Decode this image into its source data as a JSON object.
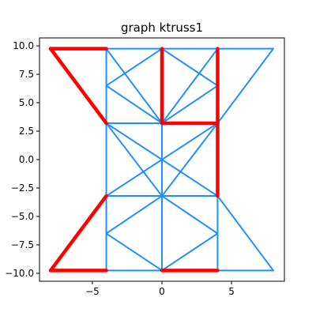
{
  "chart_data": {
    "type": "line",
    "title": "graph ktruss1",
    "xlabel": "",
    "ylabel": "",
    "xlim": [
      -8.8,
      8.8
    ],
    "ylim": [
      -10.7,
      10.7
    ],
    "x_ticks": [
      -5,
      0,
      5
    ],
    "y_ticks": [
      10.0,
      7.5,
      5.0,
      2.5,
      0.0,
      -2.5,
      -5.0,
      -7.5,
      -10.0
    ],
    "x_tick_labels": [
      "−5",
      "0",
      "5"
    ],
    "y_tick_labels": [
      "10.0",
      "7.5",
      "5.0",
      "2.5",
      "0.0",
      "−2.5",
      "−5.0",
      "−7.5",
      "−10.0"
    ],
    "grid": false,
    "legend": "none",
    "colors": {
      "edge": "#1e90ff",
      "highlight": "#ff0000"
    },
    "nodes": [
      [
        -8,
        9.75
      ],
      [
        -4,
        9.75
      ],
      [
        0,
        9.75
      ],
      [
        4,
        9.75
      ],
      [
        8,
        9.75
      ],
      [
        -4,
        6.5
      ],
      [
        4,
        6.5
      ],
      [
        -4,
        3.2
      ],
      [
        0,
        3.2
      ],
      [
        4,
        3.2
      ],
      [
        0,
        -3.2
      ],
      [
        -4,
        -3.2
      ],
      [
        4,
        -3.2
      ],
      [
        -4,
        -6.5
      ],
      [
        4,
        -6.5
      ],
      [
        -8,
        -9.75
      ],
      [
        -4,
        -9.75
      ],
      [
        0,
        -9.75
      ],
      [
        4,
        -9.75
      ],
      [
        8,
        -9.75
      ]
    ],
    "edges": [
      [
        [
          -8,
          9.75
        ],
        [
          8,
          9.75
        ]
      ],
      [
        [
          -4,
          9.75
        ],
        [
          -4,
          -9.75
        ]
      ],
      [
        [
          4,
          9.75
        ],
        [
          4,
          -9.75
        ]
      ],
      [
        [
          0,
          9.75
        ],
        [
          0,
          -9.75
        ]
      ],
      [
        [
          -8,
          -9.75
        ],
        [
          8,
          -9.75
        ]
      ],
      [
        [
          -4,
          3.2
        ],
        [
          4,
          3.2
        ]
      ],
      [
        [
          -4,
          -3.2
        ],
        [
          4,
          -3.2
        ]
      ],
      [
        [
          0,
          9.75
        ],
        [
          -4,
          6.5
        ]
      ],
      [
        [
          -4,
          6.5
        ],
        [
          0,
          3.2
        ]
      ],
      [
        [
          0,
          9.75
        ],
        [
          4,
          6.5
        ]
      ],
      [
        [
          4,
          6.5
        ],
        [
          0,
          3.2
        ]
      ],
      [
        [
          0,
          -9.75
        ],
        [
          -4,
          -6.5
        ]
      ],
      [
        [
          -4,
          -6.5
        ],
        [
          0,
          -3.2
        ]
      ],
      [
        [
          0,
          -9.75
        ],
        [
          4,
          -6.5
        ]
      ],
      [
        [
          4,
          -6.5
        ],
        [
          0,
          -3.2
        ]
      ],
      [
        [
          -4,
          3.2
        ],
        [
          4,
          -3.2
        ]
      ],
      [
        [
          4,
          3.2
        ],
        [
          -4,
          -3.2
        ]
      ],
      [
        [
          -4,
          3.2
        ],
        [
          0,
          -3.2
        ]
      ],
      [
        [
          4,
          3.2
        ],
        [
          0,
          -3.2
        ]
      ],
      [
        [
          8,
          9.75
        ],
        [
          4,
          3.2
        ]
      ],
      [
        [
          8,
          -9.75
        ],
        [
          4,
          -3.2
        ]
      ],
      [
        [
          -4,
          9.75
        ],
        [
          0,
          3.2
        ]
      ],
      [
        [
          4,
          9.75
        ],
        [
          0,
          3.2
        ]
      ]
    ],
    "highlighted_edges": [
      [
        [
          -8,
          9.75
        ],
        [
          -4,
          9.75
        ]
      ],
      [
        [
          -8,
          9.75
        ],
        [
          -4,
          3.2
        ]
      ],
      [
        [
          0,
          9.75
        ],
        [
          0,
          3.2
        ]
      ],
      [
        [
          0,
          3.2
        ],
        [
          4,
          3.2
        ]
      ],
      [
        [
          4,
          9.75
        ],
        [
          4,
          -3.2
        ]
      ],
      [
        [
          -4,
          -3.2
        ],
        [
          -8,
          -9.75
        ]
      ],
      [
        [
          -8,
          -9.75
        ],
        [
          -4,
          -9.75
        ]
      ],
      [
        [
          0,
          -9.75
        ],
        [
          4,
          -9.75
        ]
      ]
    ]
  }
}
